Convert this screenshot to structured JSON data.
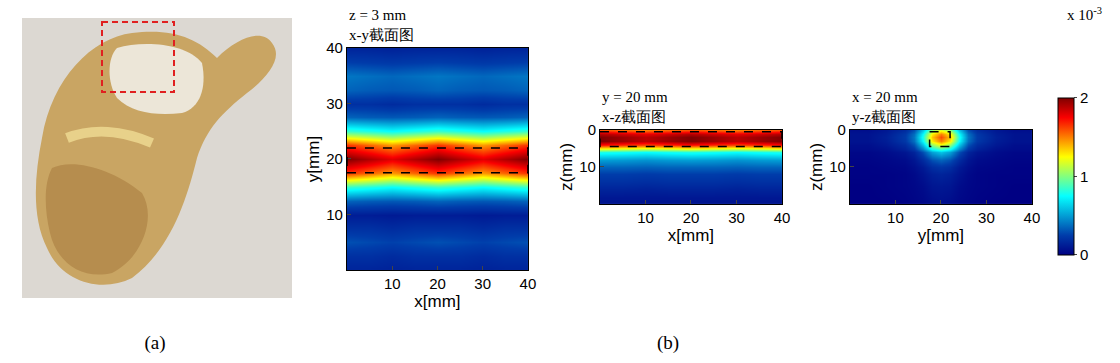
{
  "panel_labels": [
    "(a)",
    "(b)"
  ],
  "colorbar": {
    "range": [
      0,
      2
    ],
    "ticks": [
      0,
      1,
      2
    ],
    "multiplier": "x 10",
    "exponent": "-3"
  },
  "chart_data": [
    {
      "type": "heatmap",
      "title": [
        "z = 3 mm",
        "x-y截面图"
      ],
      "x_label": "x[mm]",
      "y_label": "y[mm]",
      "xlim": [
        0,
        40
      ],
      "ylim": [
        0,
        40
      ],
      "xticks": [
        10,
        20,
        30,
        40
      ],
      "yticks": [
        10,
        20,
        30,
        40
      ],
      "region": {
        "x0": 0,
        "x1": 40,
        "y0": 17.5,
        "y1": 22
      },
      "x": [
        0,
        5,
        10,
        15,
        20,
        25,
        30,
        35,
        40
      ],
      "y": [
        0,
        2.5,
        5,
        7.5,
        10,
        12.5,
        15,
        17.5,
        20,
        22.5,
        25,
        27.5,
        30,
        32.5,
        35,
        37.5,
        40
      ],
      "cells": [
        [
          0.15,
          0.15,
          0.14,
          0.15,
          0.15,
          0.15,
          0.14,
          0.15,
          0.15
        ],
        [
          0.2,
          0.2,
          0.18,
          0.2,
          0.2,
          0.2,
          0.18,
          0.2,
          0.2
        ],
        [
          0.3,
          0.28,
          0.26,
          0.28,
          0.3,
          0.28,
          0.26,
          0.28,
          0.3
        ],
        [
          0.2,
          0.2,
          0.18,
          0.2,
          0.2,
          0.2,
          0.18,
          0.2,
          0.2
        ],
        [
          0.12,
          0.12,
          0.11,
          0.12,
          0.12,
          0.12,
          0.11,
          0.12,
          0.12
        ],
        [
          0.35,
          0.33,
          0.32,
          0.33,
          0.35,
          0.33,
          0.32,
          0.33,
          0.35
        ],
        [
          0.85,
          0.8,
          0.75,
          0.8,
          0.85,
          0.8,
          0.75,
          0.8,
          0.85
        ],
        [
          1.65,
          1.55,
          1.45,
          1.55,
          1.65,
          1.55,
          1.45,
          1.55,
          1.65
        ],
        [
          2.0,
          1.9,
          1.8,
          1.9,
          2.0,
          1.9,
          1.8,
          1.9,
          2.0
        ],
        [
          1.65,
          1.55,
          1.45,
          1.55,
          1.65,
          1.55,
          1.45,
          1.55,
          1.65
        ],
        [
          0.85,
          0.8,
          0.75,
          0.8,
          0.85,
          0.8,
          0.75,
          0.8,
          0.85
        ],
        [
          0.35,
          0.33,
          0.32,
          0.33,
          0.35,
          0.33,
          0.32,
          0.33,
          0.35
        ],
        [
          0.2,
          0.2,
          0.18,
          0.2,
          0.2,
          0.2,
          0.18,
          0.2,
          0.2
        ],
        [
          0.35,
          0.33,
          0.32,
          0.33,
          0.35,
          0.33,
          0.32,
          0.33,
          0.35
        ],
        [
          0.4,
          0.38,
          0.36,
          0.38,
          0.4,
          0.38,
          0.36,
          0.38,
          0.4
        ],
        [
          0.25,
          0.24,
          0.23,
          0.24,
          0.25,
          0.24,
          0.23,
          0.24,
          0.25
        ],
        [
          0.15,
          0.15,
          0.14,
          0.15,
          0.15,
          0.15,
          0.14,
          0.15,
          0.15
        ]
      ]
    },
    {
      "type": "heatmap",
      "title": [
        "y = 20 mm",
        "x-z截面图"
      ],
      "x_label": "x[mm]",
      "y_label": "z(mm)",
      "xlim": [
        0,
        40
      ],
      "ylim": [
        20,
        0
      ],
      "xticks": [
        10,
        20,
        30,
        40
      ],
      "yticks": [
        0,
        10
      ],
      "region": {
        "x0": 0,
        "x1": 40,
        "y0": 0.5,
        "y1": 4.5
      },
      "x": [
        0,
        5,
        10,
        15,
        20,
        25,
        30,
        35,
        40
      ],
      "y": [
        0,
        1,
        2,
        3,
        4,
        5,
        6,
        8,
        10,
        12,
        14,
        16,
        18,
        20
      ],
      "cells": [
        [
          1.6,
          1.55,
          1.5,
          1.55,
          1.6,
          1.55,
          1.5,
          1.55,
          1.6
        ],
        [
          1.9,
          1.84,
          1.79,
          1.84,
          1.9,
          1.84,
          1.79,
          1.84,
          1.9
        ],
        [
          2.0,
          1.94,
          1.88,
          1.94,
          2.0,
          1.94,
          1.88,
          1.94,
          2.0
        ],
        [
          2.0,
          1.94,
          1.88,
          1.94,
          2.0,
          1.94,
          1.88,
          1.94,
          2.0
        ],
        [
          1.7,
          1.65,
          1.6,
          1.65,
          1.7,
          1.65,
          1.6,
          1.65,
          1.7
        ],
        [
          1.2,
          1.16,
          1.13,
          1.16,
          1.2,
          1.16,
          1.13,
          1.16,
          1.2
        ],
        [
          0.8,
          0.78,
          0.75,
          0.78,
          0.8,
          0.78,
          0.75,
          0.78,
          0.8
        ],
        [
          0.5,
          0.49,
          0.47,
          0.49,
          0.5,
          0.49,
          0.47,
          0.49,
          0.5
        ],
        [
          0.35,
          0.35,
          0.34,
          0.35,
          0.35,
          0.35,
          0.34,
          0.35,
          0.35
        ],
        [
          0.25,
          0.25,
          0.24,
          0.25,
          0.25,
          0.25,
          0.24,
          0.25,
          0.25
        ],
        [
          0.2,
          0.2,
          0.19,
          0.2,
          0.2,
          0.2,
          0.19,
          0.2,
          0.2
        ],
        [
          0.15,
          0.15,
          0.14,
          0.15,
          0.15,
          0.15,
          0.14,
          0.15,
          0.15
        ],
        [
          0.1,
          0.1,
          0.1,
          0.1,
          0.1,
          0.1,
          0.1,
          0.1,
          0.1
        ],
        [
          0.08,
          0.08,
          0.08,
          0.08,
          0.08,
          0.08,
          0.08,
          0.08,
          0.08
        ]
      ]
    },
    {
      "type": "heatmap",
      "title": [
        "x = 20 mm",
        "y-z截面图"
      ],
      "x_label": "y[mm]",
      "y_label": "z(mm)",
      "xlim": [
        0,
        40
      ],
      "ylim": [
        20,
        0
      ],
      "xticks": [
        10,
        20,
        30,
        40
      ],
      "yticks": [
        0,
        10
      ],
      "region": {
        "x0": 17.5,
        "x1": 22,
        "y0": 0.5,
        "y1": 4.5
      },
      "x": [
        0,
        4,
        8,
        12,
        14,
        16,
        18,
        20,
        22,
        24,
        26,
        28,
        32,
        36,
        40
      ],
      "y": [
        0,
        1,
        2,
        3,
        4,
        5,
        6,
        8,
        10,
        12,
        15,
        20
      ],
      "cells": [
        [
          0.06,
          0.06,
          0.1,
          0.18,
          0.3,
          0.6,
          1.02,
          1.2,
          1.02,
          0.6,
          0.3,
          0.18,
          0.1,
          0.06,
          0.06
        ],
        [
          0.08,
          0.08,
          0.12,
          0.23,
          0.38,
          0.75,
          1.28,
          1.5,
          1.28,
          0.75,
          0.38,
          0.23,
          0.12,
          0.08,
          0.08
        ],
        [
          0.08,
          0.08,
          0.13,
          0.24,
          0.4,
          0.8,
          1.36,
          1.6,
          1.36,
          0.8,
          0.4,
          0.24,
          0.13,
          0.08,
          0.08
        ],
        [
          0.08,
          0.08,
          0.12,
          0.23,
          0.38,
          0.75,
          1.28,
          1.5,
          1.28,
          0.75,
          0.38,
          0.23,
          0.12,
          0.08,
          0.08
        ],
        [
          0.06,
          0.06,
          0.1,
          0.18,
          0.3,
          0.6,
          1.02,
          1.2,
          1.02,
          0.6,
          0.3,
          0.18,
          0.1,
          0.06,
          0.06
        ],
        [
          0.05,
          0.05,
          0.07,
          0.14,
          0.23,
          0.45,
          0.77,
          0.9,
          0.77,
          0.45,
          0.23,
          0.14,
          0.07,
          0.05,
          0.05
        ],
        [
          0.03,
          0.03,
          0.05,
          0.09,
          0.15,
          0.3,
          0.51,
          0.6,
          0.51,
          0.3,
          0.15,
          0.09,
          0.05,
          0.03,
          0.03
        ],
        [
          0.02,
          0.02,
          0.03,
          0.05,
          0.09,
          0.18,
          0.3,
          0.35,
          0.3,
          0.18,
          0.09,
          0.05,
          0.03,
          0.02,
          0.02
        ],
        [
          0.01,
          0.01,
          0.02,
          0.03,
          0.06,
          0.11,
          0.19,
          0.22,
          0.19,
          0.11,
          0.06,
          0.03,
          0.02,
          0.01,
          0.01
        ],
        [
          0.01,
          0.01,
          0.01,
          0.02,
          0.04,
          0.08,
          0.13,
          0.15,
          0.13,
          0.08,
          0.04,
          0.02,
          0.01,
          0.01,
          0.01
        ],
        [
          0,
          0,
          0.01,
          0.02,
          0.03,
          0.05,
          0.09,
          0.1,
          0.09,
          0.05,
          0.03,
          0.02,
          0.01,
          0,
          0
        ],
        [
          0,
          0,
          0,
          0.01,
          0.02,
          0.03,
          0.05,
          0.06,
          0.05,
          0.03,
          0.02,
          0.01,
          0,
          0,
          0
        ]
      ]
    }
  ]
}
